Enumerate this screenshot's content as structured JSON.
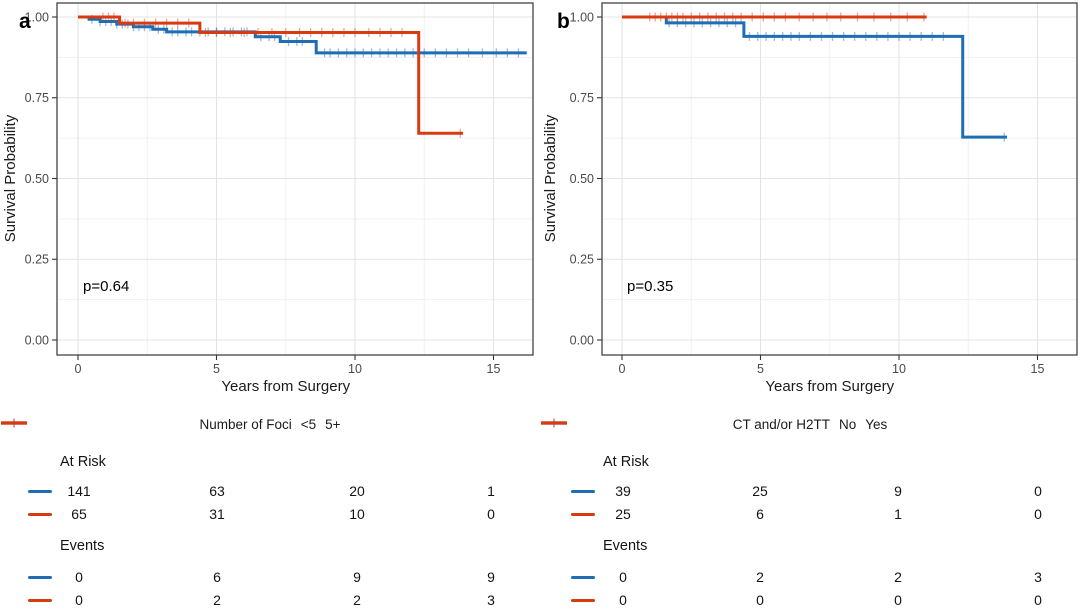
{
  "colors": {
    "curve_blue": "#1f6eb5",
    "curve_red": "#d93a0f",
    "grid_major": "#e4e4e4",
    "grid_minor": "#f1f1f1",
    "panel_border": "#434343",
    "tick": "#333333",
    "tick_label": "#4a4a4a",
    "text": "#1b1b1b"
  },
  "chart_data": [
    {
      "type": "line",
      "subtype": "kaplan-meier-survival",
      "panel_label": "a",
      "xlabel": "Years from Surgery",
      "ylabel": "Survival Probability",
      "p_value": "p=0.64",
      "xlim": [
        -0.6,
        16.4
      ],
      "ylim": [
        0,
        1.04
      ],
      "grid": true,
      "xtick_values": [
        0,
        5,
        10,
        15
      ],
      "xtick_labels": [
        "0",
        "5",
        "10",
        "15"
      ],
      "ytick_values": [
        0,
        0.25,
        0.5,
        0.75,
        1
      ],
      "ytick_labels": [
        "0.00",
        "0.25",
        "0.50",
        "0.75",
        "1.00"
      ],
      "legend": {
        "title": "Number of Foci",
        "position": "bottom",
        "entries": [
          {
            "label": "<5",
            "color_key": "curve_blue"
          },
          {
            "label": "5+",
            "color_key": "curve_red"
          }
        ]
      },
      "series": [
        {
          "name": "<5",
          "color_key": "curve_blue",
          "steps": [
            [
              0,
              1.0
            ],
            [
              0.4,
              0.993
            ],
            [
              0.8,
              0.986
            ],
            [
              1.4,
              0.978
            ],
            [
              2.0,
              0.97
            ],
            [
              2.7,
              0.962
            ],
            [
              3.2,
              0.954
            ],
            [
              6.4,
              0.939
            ],
            [
              7.3,
              0.924
            ],
            [
              8.6,
              0.889
            ]
          ],
          "end_time": 16.2,
          "censor_times": [
            0.5,
            0.8,
            1.0,
            1.2,
            1.4,
            1.6,
            1.8,
            2.0,
            2.2,
            2.4,
            2.6,
            2.9,
            3.1,
            3.4,
            3.6,
            3.9,
            4.1,
            4.4,
            4.7,
            5.0,
            5.3,
            5.6,
            5.9,
            6.1,
            6.6,
            6.9,
            7.1,
            7.6,
            7.9,
            8.1,
            8.9,
            9.1,
            9.4,
            9.7,
            10.0,
            10.3,
            10.6,
            10.9,
            11.2,
            11.5,
            11.8,
            12.1,
            12.5,
            12.9,
            13.3,
            13.7,
            14.1,
            14.6,
            15.1,
            15.5,
            15.9
          ]
        },
        {
          "name": "5+",
          "color_key": "curve_red",
          "steps": [
            [
              0,
              1.0
            ],
            [
              1.5,
              0.981
            ],
            [
              4.4,
              0.952
            ],
            [
              12.3,
              0.64
            ]
          ],
          "end_time": 13.9,
          "censor_times": [
            0.9,
            1.1,
            1.3,
            1.7,
            2.0,
            2.4,
            2.8,
            3.2,
            3.6,
            4.0,
            4.6,
            5.0,
            5.5,
            6.0,
            6.5,
            7.0,
            7.5,
            8.0,
            8.4,
            8.8,
            9.2,
            9.6,
            10.0,
            10.5,
            10.9,
            11.3,
            11.7,
            13.8
          ]
        }
      ],
      "risk_table": {
        "time_points": [
          0,
          5,
          10,
          15
        ],
        "sections": [
          {
            "label": "At Risk",
            "rows": [
              {
                "color_key": "curve_blue",
                "values": [
                  "141",
                  "63",
                  "20",
                  "1"
                ]
              },
              {
                "color_key": "curve_red",
                "values": [
                  "65",
                  "31",
                  "10",
                  "0"
                ]
              }
            ]
          },
          {
            "label": "Events",
            "rows": [
              {
                "color_key": "curve_blue",
                "values": [
                  "0",
                  "6",
                  "9",
                  "9"
                ]
              },
              {
                "color_key": "curve_red",
                "values": [
                  "0",
                  "2",
                  "2",
                  "3"
                ]
              }
            ]
          }
        ]
      }
    },
    {
      "type": "line",
      "subtype": "kaplan-meier-survival",
      "panel_label": "b",
      "xlabel": "Years from Surgery",
      "ylabel": "Survival Probability",
      "p_value": "p=0.35",
      "xlim": [
        -0.6,
        16.4
      ],
      "ylim": [
        0,
        1.04
      ],
      "grid": true,
      "xtick_values": [
        0,
        5,
        10,
        15
      ],
      "xtick_labels": [
        "0",
        "5",
        "10",
        "15"
      ],
      "ytick_values": [
        0,
        0.25,
        0.5,
        0.75,
        1
      ],
      "ytick_labels": [
        "0.00",
        "0.25",
        "0.50",
        "0.75",
        "1.00"
      ],
      "legend": {
        "title": "CT and/or H2TT",
        "position": "bottom",
        "entries": [
          {
            "label": "No",
            "color_key": "curve_blue"
          },
          {
            "label": "Yes",
            "color_key": "curve_red"
          }
        ]
      },
      "series": [
        {
          "name": "No",
          "color_key": "curve_blue",
          "steps": [
            [
              0,
              1.0
            ],
            [
              1.6,
              0.982
            ],
            [
              4.4,
              0.94
            ],
            [
              12.3,
              0.628
            ]
          ],
          "end_time": 13.9,
          "censor_times": [
            1.7,
            2.0,
            2.3,
            2.6,
            2.9,
            3.2,
            3.5,
            3.8,
            4.1,
            4.6,
            4.9,
            5.2,
            5.5,
            5.8,
            6.1,
            6.4,
            6.8,
            7.2,
            7.6,
            8.0,
            8.4,
            8.8,
            9.2,
            9.6,
            10.0,
            10.4,
            10.8,
            11.2,
            11.6,
            13.8
          ]
        },
        {
          "name": "Yes",
          "color_key": "curve_red",
          "steps": [
            [
              0,
              1.0
            ]
          ],
          "end_time": 11.0,
          "censor_times": [
            1.0,
            1.2,
            1.4,
            1.6,
            1.8,
            2.0,
            2.2,
            2.5,
            2.8,
            3.1,
            3.4,
            3.7,
            4.0,
            4.3,
            4.7,
            5.1,
            5.5,
            5.9,
            6.4,
            6.9,
            7.4,
            7.9,
            8.5,
            9.1,
            9.7,
            10.3,
            10.9
          ]
        }
      ],
      "risk_table": {
        "time_points": [
          0,
          5,
          10,
          15
        ],
        "sections": [
          {
            "label": "At Risk",
            "rows": [
              {
                "color_key": "curve_blue",
                "values": [
                  "39",
                  "25",
                  "9",
                  "0"
                ]
              },
              {
                "color_key": "curve_red",
                "values": [
                  "25",
                  "6",
                  "1",
                  "0"
                ]
              }
            ]
          },
          {
            "label": "Events",
            "rows": [
              {
                "color_key": "curve_blue",
                "values": [
                  "0",
                  "2",
                  "2",
                  "3"
                ]
              },
              {
                "color_key": "curve_red",
                "values": [
                  "0",
                  "0",
                  "0",
                  "0"
                ]
              }
            ]
          }
        ]
      }
    }
  ]
}
